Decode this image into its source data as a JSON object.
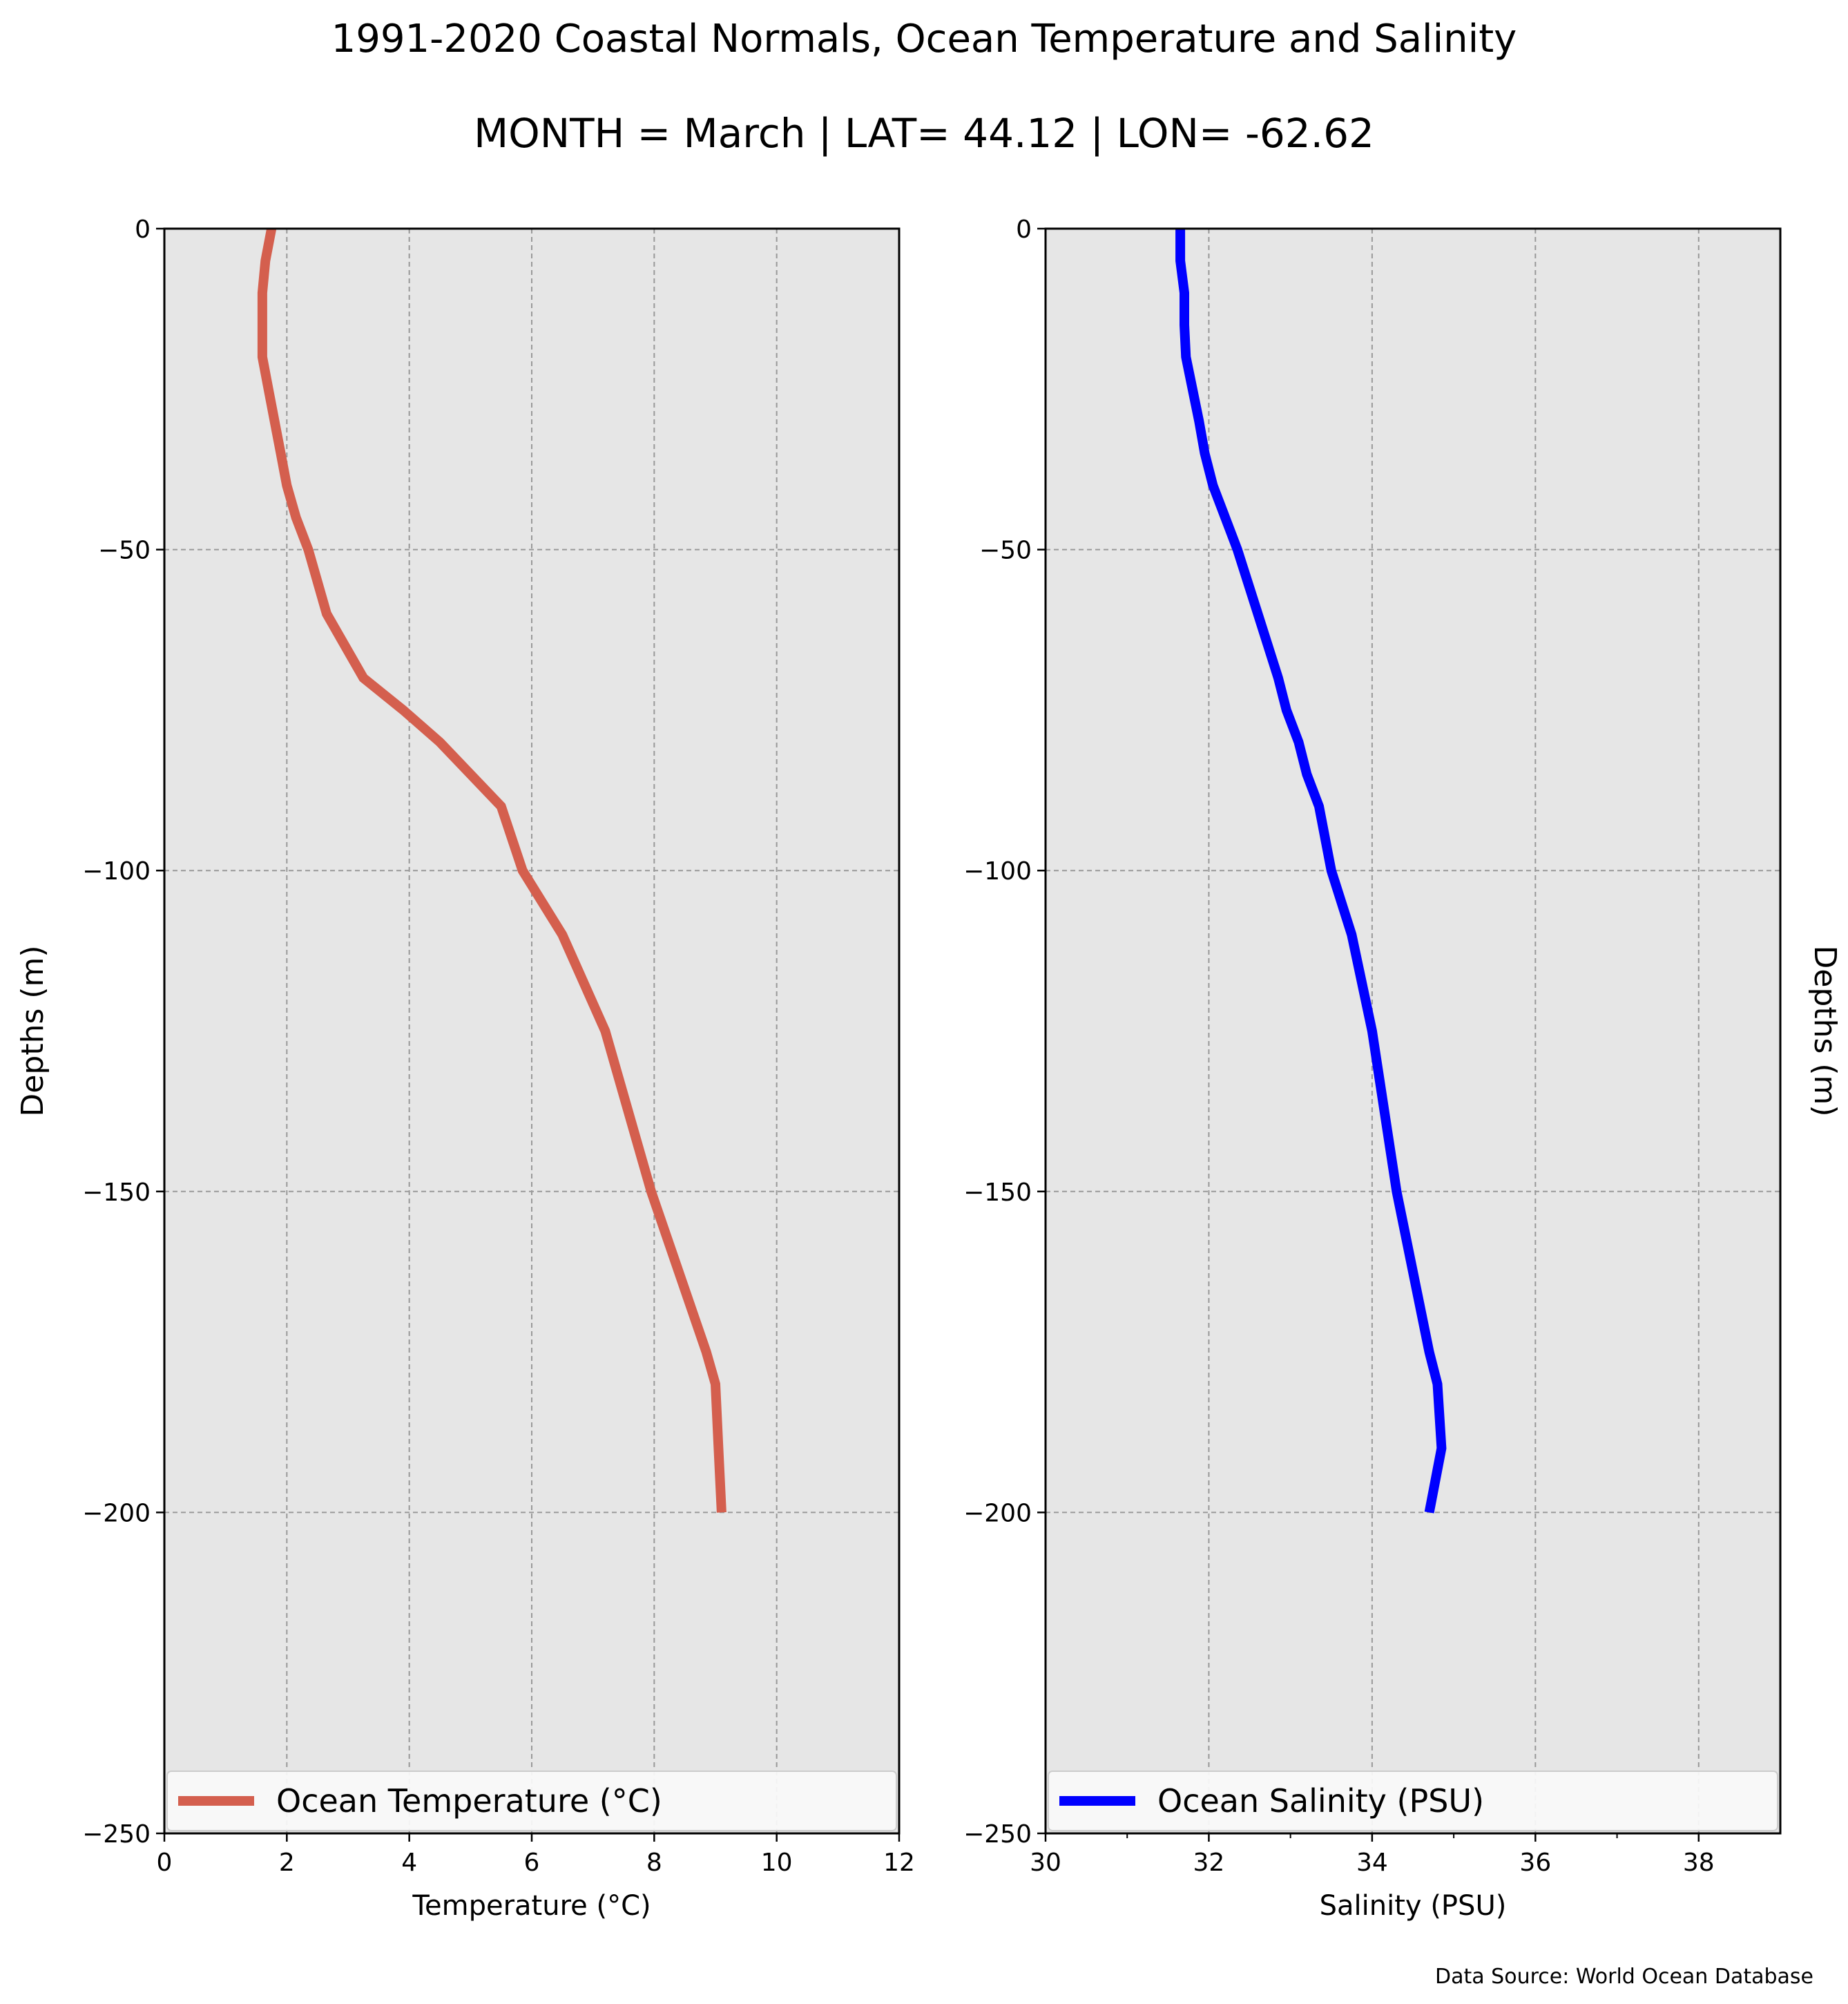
{
  "figure": {
    "title": "1991-2020 Coastal Normals, Ocean Temperature and Salinity",
    "subtitle": "MONTH = March | LAT= 44.12 | LON= -62.62",
    "source_note": "Data Source: World Ocean Database",
    "background_panel_color": "#e6e6e6",
    "grid_color": "#999999"
  },
  "chart_data": [
    {
      "type": "line",
      "xlabel": "Temperature (°C)",
      "ylabel": "Depths (m)",
      "ylabel_side": "left",
      "xlim": [
        0,
        12
      ],
      "ylim": [
        -250,
        0
      ],
      "xticks": [
        "0",
        "2",
        "4",
        "6",
        "8",
        "10",
        "12"
      ],
      "yticks": [
        "0",
        "−50",
        "−100",
        "−150",
        "−200",
        "−250"
      ],
      "grid": true,
      "legend_position": "bottom",
      "series": [
        {
          "name": "Ocean Temperature (°C)",
          "color": "#d45f4e",
          "x": [
            1.75,
            1.65,
            1.6,
            1.6,
            1.6,
            1.7,
            1.8,
            1.9,
            2.0,
            2.15,
            2.35,
            2.65,
            3.25,
            3.9,
            4.5,
            5.0,
            5.5,
            5.85,
            6.5,
            7.2,
            7.95,
            8.85,
            9.0,
            9.05,
            9.1
          ],
          "y": [
            0,
            -5,
            -10,
            -15,
            -20,
            -25,
            -30,
            -35,
            -40,
            -45,
            -50,
            -60,
            -70,
            -75,
            -80,
            -85,
            -90,
            -100,
            -110,
            -125,
            -150,
            -175,
            -180,
            -190,
            -200
          ]
        }
      ]
    },
    {
      "type": "line",
      "xlabel": "Salinity (PSU)",
      "ylabel": "Depths (m)",
      "ylabel_side": "right",
      "xlim": [
        30,
        39
      ],
      "ylim": [
        -250,
        0
      ],
      "xticks": [
        "30",
        "32",
        "34",
        "36",
        "38"
      ],
      "yticks": [
        "0",
        "−50",
        "−100",
        "−150",
        "−200",
        "−250"
      ],
      "grid": true,
      "legend_position": "bottom",
      "series": [
        {
          "name": "Ocean Salinity (PSU)",
          "color": "#0000ff",
          "x": [
            31.65,
            31.65,
            31.7,
            31.7,
            31.72,
            31.8,
            31.88,
            31.95,
            32.05,
            32.2,
            32.35,
            32.6,
            32.85,
            32.95,
            33.1,
            33.2,
            33.35,
            33.5,
            33.75,
            34.0,
            34.3,
            34.7,
            34.8,
            34.85,
            34.7
          ],
          "y": [
            0,
            -5,
            -10,
            -15,
            -20,
            -25,
            -30,
            -35,
            -40,
            -45,
            -50,
            -60,
            -70,
            -75,
            -80,
            -85,
            -90,
            -100,
            -110,
            -125,
            -150,
            -175,
            -180,
            -190,
            -200
          ]
        }
      ]
    }
  ]
}
